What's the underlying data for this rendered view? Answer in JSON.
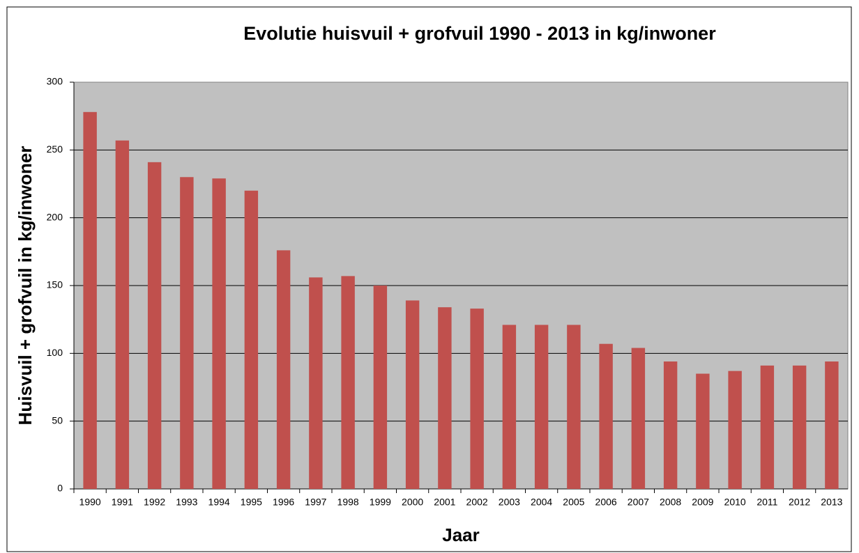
{
  "chart_data": {
    "type": "bar",
    "title": "Evolutie huisvuil + grofvuil 1990 - 2013 in kg/inwoner",
    "x_label": "Jaar",
    "y_label": "Huisvuil + grofvuil in kg/inwoner",
    "categories": [
      "1990",
      "1991",
      "1992",
      "1993",
      "1994",
      "1995",
      "1996",
      "1997",
      "1998",
      "1999",
      "2000",
      "2001",
      "2002",
      "2003",
      "2004",
      "2005",
      "2006",
      "2007",
      "2008",
      "2009",
      "2010",
      "2011",
      "2012",
      "2013"
    ],
    "values": [
      278,
      257,
      241,
      230,
      229,
      220,
      176,
      156,
      157,
      150,
      139,
      134,
      133,
      121,
      121,
      121,
      107,
      104,
      94,
      85,
      87,
      91,
      91,
      94
    ],
    "color": "#c0504d",
    "ylim": [
      0,
      300
    ],
    "yticks": [
      0,
      50,
      100,
      150,
      200,
      250,
      300
    ],
    "grid": true
  }
}
